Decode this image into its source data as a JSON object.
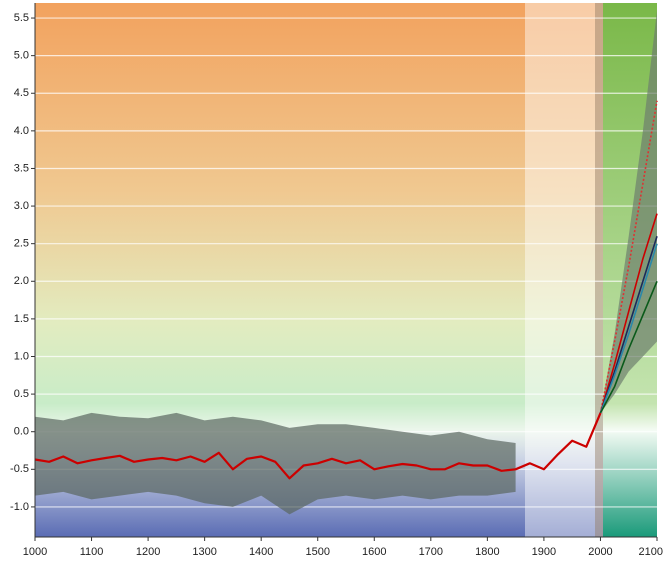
{
  "chart_data": {
    "type": "line",
    "xlim": [
      1000,
      2100
    ],
    "xticks": [
      1000,
      1100,
      1200,
      1300,
      1400,
      1500,
      1600,
      1700,
      1800,
      1900,
      2000,
      2100
    ],
    "ylim": [
      -1.4,
      5.7
    ],
    "yticks": [
      {
        "value": -1,
        "label": "-1.0"
      },
      -0.5,
      {
        "value": 0,
        "label": "0.0"
      },
      0.5,
      {
        "value": 1,
        "label": "1.0"
      },
      1.5,
      {
        "value": 2,
        "label": "2.0"
      },
      2.5,
      {
        "value": 3,
        "label": "3.0"
      },
      3.5,
      {
        "value": 4,
        "label": "4.0"
      },
      4.5,
      {
        "value": 5,
        "label": "5.0"
      },
      5.5
    ],
    "grid": true,
    "bands": [
      {
        "color": "#5a6660",
        "x": [
          1000,
          1050,
          1100,
          1150,
          1200,
          1250,
          1300,
          1350,
          1400,
          1450,
          1500,
          1550,
          1600,
          1650,
          1700,
          1750,
          1800,
          1850
        ],
        "upper": [
          0.2,
          0.15,
          0.25,
          0.2,
          0.18,
          0.25,
          0.15,
          0.2,
          0.15,
          0.05,
          0.1,
          0.1,
          0.05,
          0.0,
          -0.05,
          0.0,
          -0.1,
          -0.15
        ],
        "lower": [
          -0.85,
          -0.8,
          -0.9,
          -0.85,
          -0.8,
          -0.85,
          -0.95,
          -1.0,
          -0.85,
          -1.1,
          -0.9,
          -0.85,
          -0.9,
          -0.85,
          -0.9,
          -0.85,
          -0.85,
          -0.8
        ]
      },
      {
        "color": "#6e7f6e",
        "x": [
          2000,
          2025,
          2050,
          2075,
          2100
        ],
        "upper": [
          0.25,
          1.3,
          2.6,
          4.0,
          5.6
        ],
        "lower": [
          0.25,
          0.5,
          0.8,
          1.0,
          1.2
        ]
      }
    ],
    "series": [
      {
        "color": "#cc0000",
        "x": [
          1000,
          1025,
          1050,
          1075,
          1100,
          1125,
          1150,
          1175,
          1200,
          1225,
          1250,
          1275,
          1300,
          1325,
          1350,
          1375,
          1400,
          1425,
          1450,
          1475,
          1500,
          1525,
          1550,
          1575,
          1600,
          1625,
          1650,
          1675,
          1700,
          1725,
          1750,
          1775,
          1800,
          1825,
          1850,
          1875,
          1900,
          1925,
          1950,
          1975,
          2000
        ],
        "values": [
          -0.37,
          -0.4,
          -0.33,
          -0.42,
          -0.38,
          -0.35,
          -0.32,
          -0.4,
          -0.37,
          -0.35,
          -0.38,
          -0.33,
          -0.4,
          -0.28,
          -0.5,
          -0.36,
          -0.33,
          -0.4,
          -0.62,
          -0.45,
          -0.42,
          -0.36,
          -0.42,
          -0.38,
          -0.5,
          -0.46,
          -0.43,
          -0.45,
          -0.5,
          -0.5,
          -0.42,
          -0.45,
          -0.45,
          -0.52,
          -0.5,
          -0.42,
          -0.5,
          -0.3,
          -0.12,
          -0.2,
          0.25
        ]
      },
      {
        "color": "#dd3333",
        "dashed": true,
        "x": [
          2000,
          2025,
          2050,
          2075,
          2100
        ],
        "values": [
          0.25,
          1.2,
          2.2,
          3.3,
          4.4
        ]
      },
      {
        "color": "#cc0000",
        "x": [
          2000,
          2025,
          2050,
          2075,
          2100
        ],
        "values": [
          0.25,
          0.9,
          1.6,
          2.3,
          2.9
        ]
      },
      {
        "color": "#1a2a5a",
        "x": [
          2000,
          2025,
          2050,
          2075,
          2100
        ],
        "values": [
          0.25,
          0.8,
          1.4,
          2.0,
          2.6
        ]
      },
      {
        "color": "#2a88aa",
        "x": [
          2000,
          2025,
          2050,
          2075,
          2100
        ],
        "values": [
          0.25,
          0.75,
          1.3,
          1.9,
          2.5
        ]
      },
      {
        "color": "#0a5a1a",
        "x": [
          2000,
          2025,
          2050,
          2075,
          2100
        ],
        "values": [
          0.25,
          0.6,
          1.1,
          1.55,
          2.0
        ]
      }
    ]
  }
}
